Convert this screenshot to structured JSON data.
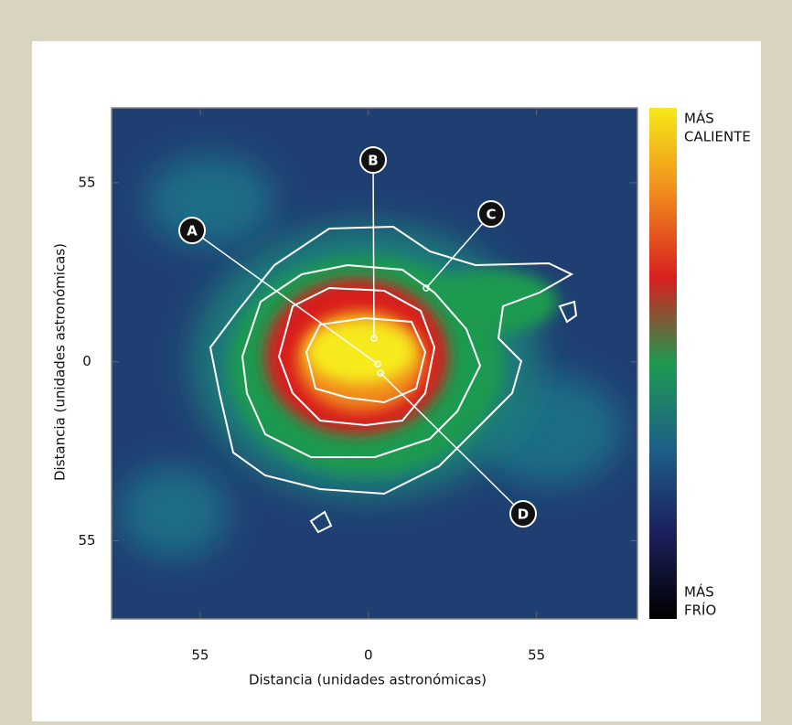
{
  "chart_data": {
    "type": "heatmap",
    "xlabel": "Distancia (unidades astronómicas)",
    "ylabel": "Distancia (unidades astronómicas)",
    "xlim": [
      -84,
      88
    ],
    "ylim": [
      -79,
      78
    ],
    "xticks": [
      {
        "value": -55,
        "label": "55"
      },
      0,
      {
        "value": 55,
        "label": "55"
      }
    ],
    "yticks": [
      {
        "value": -55,
        "label": "55"
      },
      0,
      {
        "value": 55,
        "label": "55"
      }
    ],
    "colormap": [
      "#000000",
      "#1c1f5c",
      "#1d5f88",
      "#1e9a50",
      "#d81f1f",
      "#f08a1c",
      "#f6ea1a"
    ],
    "colorbar": {
      "high_label": [
        "MÁS",
        "CALIENTE"
      ],
      "low_label": [
        "MÁS",
        "FRÍO"
      ]
    },
    "annotations": [
      {
        "label": "A"
      },
      {
        "label": "B"
      },
      {
        "label": "C"
      },
      {
        "label": "D"
      }
    ]
  }
}
